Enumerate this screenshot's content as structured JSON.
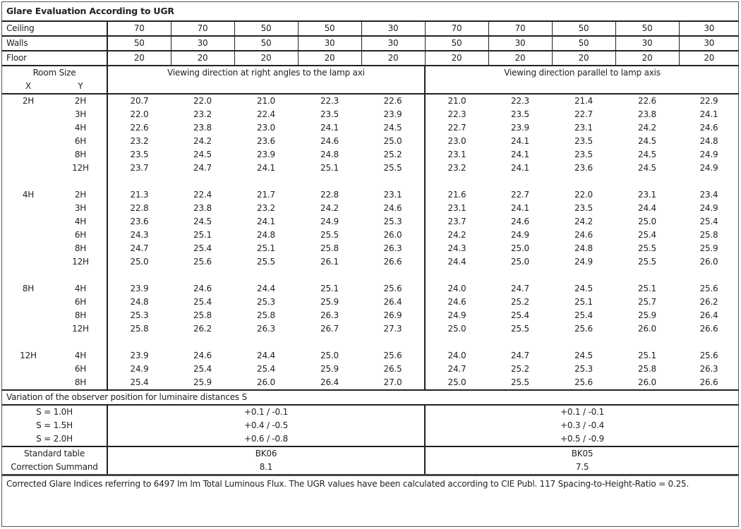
{
  "title": "Glare Evaluation According to UGR",
  "reflectances": [
    {
      "label": "Ceiling",
      "values": [
        "70",
        "70",
        "50",
        "50",
        "30",
        "70",
        "70",
        "50",
        "50",
        "30"
      ]
    },
    {
      "label": "Walls",
      "values": [
        "50",
        "30",
        "50",
        "30",
        "30",
        "50",
        "30",
        "50",
        "30",
        "30"
      ]
    },
    {
      "label": "Floor",
      "values": [
        "20",
        "20",
        "20",
        "20",
        "20",
        "20",
        "20",
        "20",
        "20",
        "20"
      ]
    }
  ],
  "room_size_label": "Room Size",
  "x_label": "X",
  "y_label": "Y",
  "direction_right_angles": "Viewing direction at right angles to the lamp axi",
  "direction_parallel": "Viewing direction parallel to lamp axis",
  "groups": [
    {
      "x": "2H",
      "rows": [
        {
          "y": "2H",
          "perp": [
            "20.7",
            "22.0",
            "21.0",
            "22.3",
            "22.6"
          ],
          "par": [
            "21.0",
            "22.3",
            "21.4",
            "22.6",
            "22.9"
          ]
        },
        {
          "y": "3H",
          "perp": [
            "22.0",
            "23.2",
            "22.4",
            "23.5",
            "23.9"
          ],
          "par": [
            "22.3",
            "23.5",
            "22.7",
            "23.8",
            "24.1"
          ]
        },
        {
          "y": "4H",
          "perp": [
            "22.6",
            "23.8",
            "23.0",
            "24.1",
            "24.5"
          ],
          "par": [
            "22.7",
            "23.9",
            "23.1",
            "24.2",
            "24.6"
          ]
        },
        {
          "y": "6H",
          "perp": [
            "23.2",
            "24.2",
            "23.6",
            "24.6",
            "25.0"
          ],
          "par": [
            "23.0",
            "24.1",
            "23.5",
            "24.5",
            "24.8"
          ]
        },
        {
          "y": "8H",
          "perp": [
            "23.5",
            "24.5",
            "23.9",
            "24.8",
            "25.2"
          ],
          "par": [
            "23.1",
            "24.1",
            "23.5",
            "24.5",
            "24.9"
          ]
        },
        {
          "y": "12H",
          "perp": [
            "23.7",
            "24.7",
            "24.1",
            "25.1",
            "25.5"
          ],
          "par": [
            "23.2",
            "24.1",
            "23.6",
            "24.5",
            "24.9"
          ]
        }
      ]
    },
    {
      "x": "4H",
      "rows": [
        {
          "y": "2H",
          "perp": [
            "21.3",
            "22.4",
            "21.7",
            "22.8",
            "23.1"
          ],
          "par": [
            "21.6",
            "22.7",
            "22.0",
            "23.1",
            "23.4"
          ]
        },
        {
          "y": "3H",
          "perp": [
            "22.8",
            "23.8",
            "23.2",
            "24.2",
            "24.6"
          ],
          "par": [
            "23.1",
            "24.1",
            "23.5",
            "24.4",
            "24.9"
          ]
        },
        {
          "y": "4H",
          "perp": [
            "23.6",
            "24.5",
            "24.1",
            "24.9",
            "25.3"
          ],
          "par": [
            "23.7",
            "24.6",
            "24.2",
            "25.0",
            "25.4"
          ]
        },
        {
          "y": "6H",
          "perp": [
            "24.3",
            "25.1",
            "24.8",
            "25.5",
            "26.0"
          ],
          "par": [
            "24.2",
            "24.9",
            "24.6",
            "25.4",
            "25.8"
          ]
        },
        {
          "y": "8H",
          "perp": [
            "24.7",
            "25.4",
            "25.1",
            "25.8",
            "26.3"
          ],
          "par": [
            "24.3",
            "25.0",
            "24.8",
            "25.5",
            "25.9"
          ]
        },
        {
          "y": "12H",
          "perp": [
            "25.0",
            "25.6",
            "25.5",
            "26.1",
            "26.6"
          ],
          "par": [
            "24.4",
            "25.0",
            "24.9",
            "25.5",
            "26.0"
          ]
        }
      ]
    },
    {
      "x": "8H",
      "rows": [
        {
          "y": "4H",
          "perp": [
            "23.9",
            "24.6",
            "24.4",
            "25.1",
            "25.6"
          ],
          "par": [
            "24.0",
            "24.7",
            "24.5",
            "25.1",
            "25.6"
          ]
        },
        {
          "y": "6H",
          "perp": [
            "24.8",
            "25.4",
            "25.3",
            "25.9",
            "26.4"
          ],
          "par": [
            "24.6",
            "25.2",
            "25.1",
            "25.7",
            "26.2"
          ]
        },
        {
          "y": "8H",
          "perp": [
            "25.3",
            "25.8",
            "25.8",
            "26.3",
            "26.9"
          ],
          "par": [
            "24.9",
            "25.4",
            "25.4",
            "25.9",
            "26.4"
          ]
        },
        {
          "y": "12H",
          "perp": [
            "25.8",
            "26.2",
            "26.3",
            "26.7",
            "27.3"
          ],
          "par": [
            "25.0",
            "25.5",
            "25.6",
            "26.0",
            "26.6"
          ]
        }
      ]
    },
    {
      "x": "12H",
      "rows": [
        {
          "y": "4H",
          "perp": [
            "23.9",
            "24.6",
            "24.4",
            "25.0",
            "25.6"
          ],
          "par": [
            "24.0",
            "24.7",
            "24.5",
            "25.1",
            "25.6"
          ]
        },
        {
          "y": "6H",
          "perp": [
            "24.9",
            "25.4",
            "25.4",
            "25.9",
            "26.5"
          ],
          "par": [
            "24.7",
            "25.2",
            "25.3",
            "25.8",
            "26.3"
          ]
        },
        {
          "y": "8H",
          "perp": [
            "25.4",
            "25.9",
            "26.0",
            "26.4",
            "27.0"
          ],
          "par": [
            "25.0",
            "25.5",
            "25.6",
            "26.0",
            "26.6"
          ]
        }
      ]
    }
  ],
  "variation_title": "Variation of the observer position for luminaire distances S",
  "variations": [
    {
      "label": "S = 1.0H",
      "perp": "+0.1 / -0.1",
      "par": "+0.1 / -0.1"
    },
    {
      "label": "S = 1.5H",
      "perp": "+0.4 / -0.5",
      "par": "+0.3 / -0.4"
    },
    {
      "label": "S = 2.0H",
      "perp": "+0.6 / -0.8",
      "par": "+0.5 / -0.9"
    }
  ],
  "standard_table": {
    "label": "Standard table",
    "perp": "BK06",
    "par": "BK05"
  },
  "correction": {
    "label": "Correction Summand",
    "perp": "8.1",
    "par": "7.5"
  },
  "footer": "Corrected Glare Indices referring to 6497 lm lm Total Luminous Flux. The UGR values have been calculated according to CIE Publ. 117    Spacing-to-Height-Ratio = 0.25."
}
